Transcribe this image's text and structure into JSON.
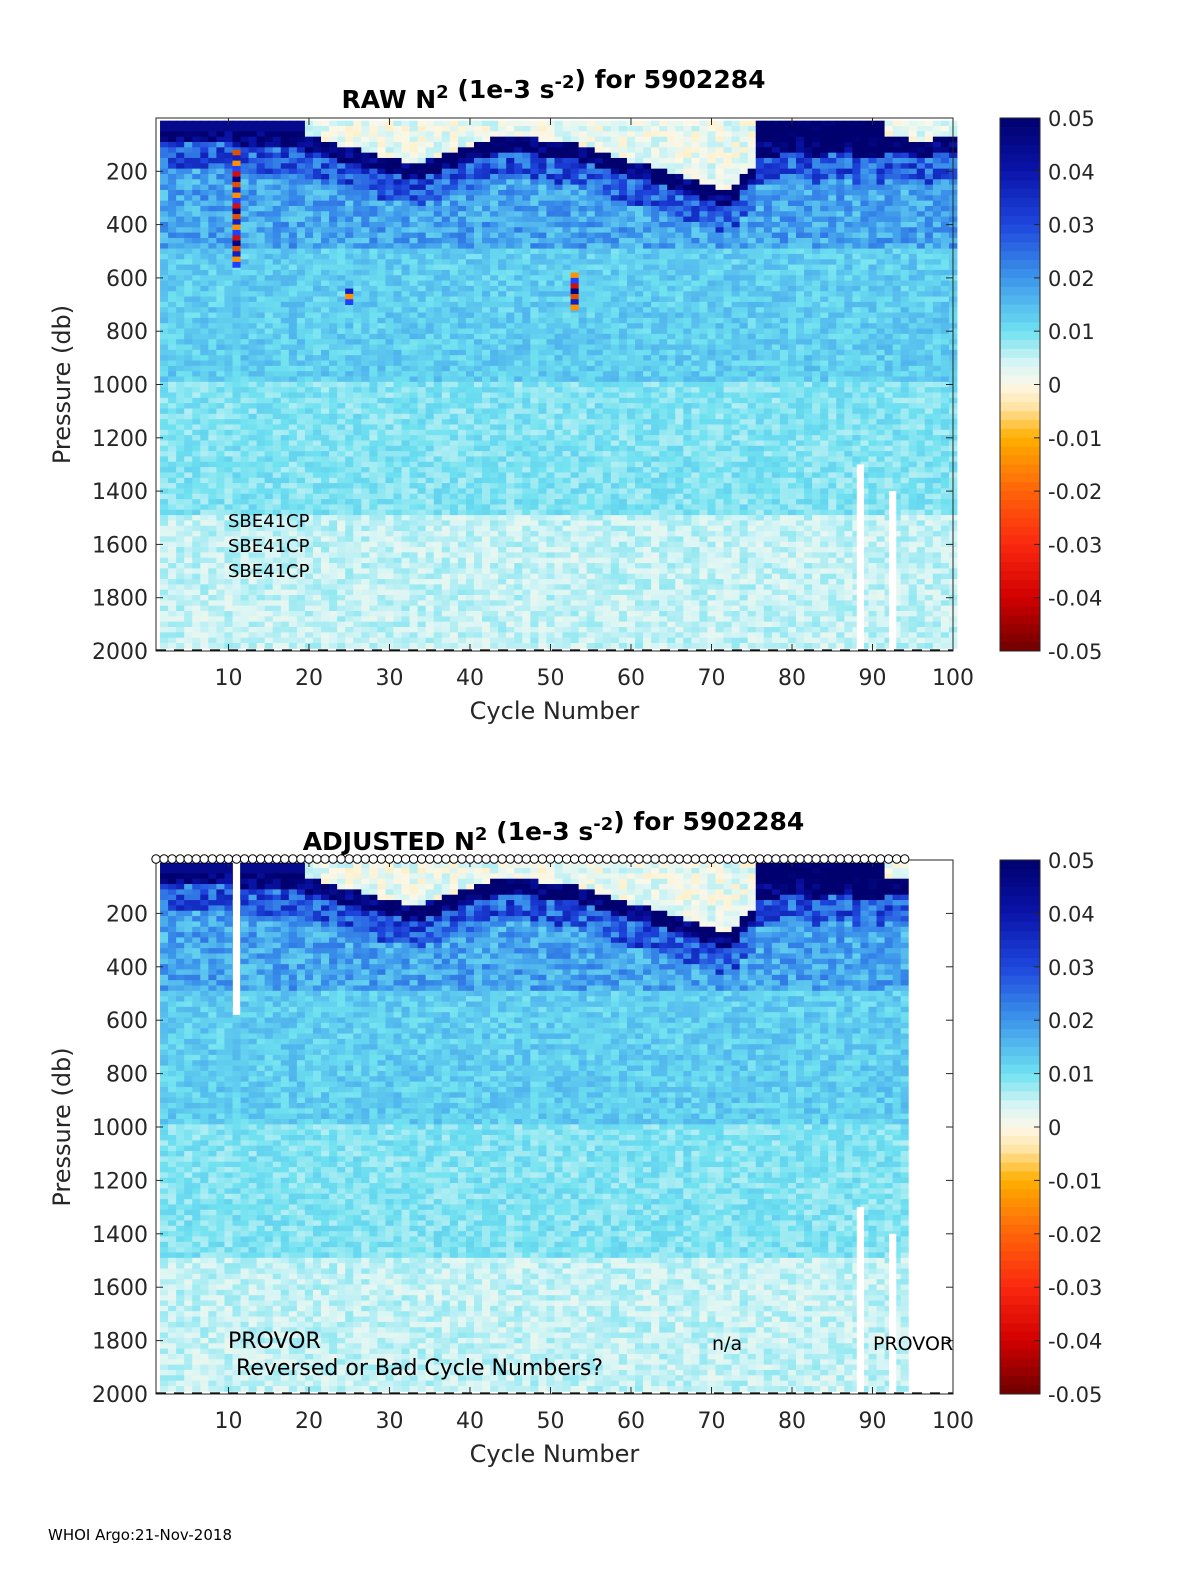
{
  "footer": "WHOI Argo:21-Nov-2018",
  "chart_data": [
    {
      "type": "heatmap",
      "title_prefix": "RAW N",
      "title_sup1": "2",
      "title_mid": " (1e-3 s",
      "title_sup2": "-2",
      "title_suffix": ") for 5902284",
      "xlabel": "Cycle Number",
      "ylabel": "Pressure (db)",
      "xlim": [
        1,
        100
      ],
      "ylim": [
        0,
        2000
      ],
      "y_reversed": true,
      "xticks": [
        10,
        20,
        30,
        40,
        50,
        60,
        70,
        80,
        90,
        100
      ],
      "yticks": [
        200,
        400,
        600,
        800,
        1000,
        1200,
        1400,
        1600,
        1800,
        2000
      ],
      "colorbar": {
        "range": [
          -0.05,
          0.05
        ],
        "ticks": [
          "0.05",
          "0.04",
          "0.03",
          "0.02",
          "0.01",
          "0",
          "-0.01",
          "-0.02",
          "-0.03",
          "-0.04",
          "-0.05"
        ]
      },
      "last_cycle": 100,
      "annotations": [
        "SBE41CP",
        "SBE41CP",
        "SBE41CP"
      ],
      "missing_profiles": [
        {
          "cycle": 88.5,
          "from_pressure": 1300
        },
        {
          "cycle": 92.5,
          "from_pressure": 1400
        }
      ],
      "bad_cells": [
        {
          "cycle": 11,
          "from_pressure": 120,
          "to_pressure": 560
        },
        {
          "cycle": 25,
          "from_pressure": 640,
          "to_pressure": 700
        },
        {
          "cycle": 53,
          "from_pressure": 580,
          "to_pressure": 720
        }
      ],
      "cycle_markers": false
    },
    {
      "type": "heatmap",
      "title_prefix": "ADJUSTED N",
      "title_sup1": "2",
      "title_mid": " (1e-3 s",
      "title_sup2": "-2",
      "title_suffix": ") for 5902284",
      "xlabel": "Cycle Number",
      "ylabel": "Pressure (db)",
      "xlim": [
        1,
        100
      ],
      "ylim": [
        0,
        2000
      ],
      "y_reversed": true,
      "xticks": [
        10,
        20,
        30,
        40,
        50,
        60,
        70,
        80,
        90,
        100
      ],
      "yticks": [
        200,
        400,
        600,
        800,
        1000,
        1200,
        1400,
        1600,
        1800,
        2000
      ],
      "colorbar": {
        "range": [
          -0.05,
          0.05
        ],
        "ticks": [
          "0.05",
          "0.04",
          "0.03",
          "0.02",
          "0.01",
          "0",
          "-0.01",
          "-0.02",
          "-0.03",
          "-0.04",
          "-0.05"
        ]
      },
      "last_cycle": 94,
      "annotations_main": [
        "PROVOR",
        "Reversed or Bad Cycle Numbers?"
      ],
      "annotation_na": "n/a",
      "annotation_right": "PROVOR",
      "missing_profiles": [
        {
          "cycle": 11,
          "from_pressure": 0,
          "to_pressure": 580
        },
        {
          "cycle": 88.5,
          "from_pressure": 1300
        },
        {
          "cycle": 92.5,
          "from_pressure": 1400
        }
      ],
      "cycle_markers": true
    }
  ]
}
